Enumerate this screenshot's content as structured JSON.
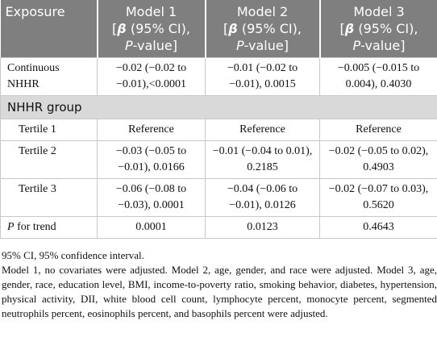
{
  "header": {
    "exposure": "Exposure",
    "models": [
      {
        "name": "Model 1",
        "open": "[",
        "beta": "β",
        "ci": " (95% CI),",
        "p": "P",
        "pv": "-value]"
      },
      {
        "name": "Model 2",
        "open": "[",
        "beta": "β",
        "ci": " (95% CI),",
        "p": "P",
        "pv": "-value]"
      },
      {
        "name": "Model 3",
        "open": "[",
        "beta": "β",
        "ci": " (95% CI),",
        "p": "P",
        "pv": "-value]"
      }
    ]
  },
  "table": {
    "continuous": [
      "Continuous NHHR",
      "−0.02 (−0.02 to −0.01),<0.0001",
      "−0.01 (−0.02 to −0.01), 0.0015",
      "−0.005 (−0.015 to 0.004), 0.4030"
    ],
    "section": "NHHR group",
    "rows": [
      [
        "Tertile 1",
        "Reference",
        "Reference",
        "Reference"
      ],
      [
        "Tertile 2",
        "−0.03 (−0.05 to −0.01), 0.0166",
        "−0.01 (−0.04 to 0.01), 0.2185",
        "−0.02 (−0.05 to 0.02), 0.4903"
      ],
      [
        "Tertile 3",
        "−0.06 (−0.08 to −0.03), 0.0001",
        "−0.04 (−0.06 to −0.01), 0.0126",
        "−0.02 (−0.07 to 0.03), 0.5620"
      ]
    ],
    "trend": {
      "p": "P",
      "label": " for trend",
      "values": [
        "0.0001",
        "0.0123",
        "0.4643"
      ]
    }
  },
  "notes": [
    "95% CI, 95% confidence interval.",
    "Model 1, no covariates were adjusted. Model 2, age, gender, and race were adjusted. Model 3, age, gender, race, education level, BMI, income-to-poverty ratio, smoking behavior, diabetes, hypertension, physical activity, DII, white blood cell count, lymphocyte percent, monocyte percent, segmented neutrophils percent, eosinophils percent, and basophils percent were adjusted."
  ]
}
